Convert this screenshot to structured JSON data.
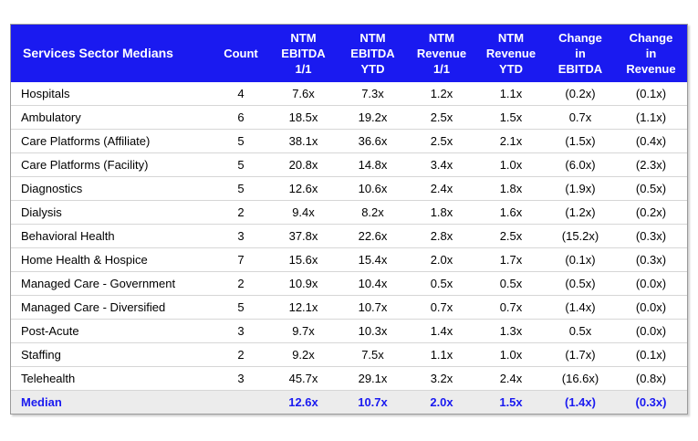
{
  "table": {
    "headers": [
      [
        "Services Sector Medians"
      ],
      [
        "Count"
      ],
      [
        "NTM",
        "EBITDA",
        "1/1"
      ],
      [
        "NTM",
        "EBITDA",
        "YTD"
      ],
      [
        "NTM",
        "Revenue",
        "1/1"
      ],
      [
        "NTM",
        "Revenue",
        "YTD"
      ],
      [
        "Change",
        "in",
        "EBITDA"
      ],
      [
        "Change",
        "in",
        "Revenue"
      ]
    ],
    "rows": [
      [
        "Hospitals",
        "4",
        "7.6x",
        "7.3x",
        "1.2x",
        "1.1x",
        "(0.2x)",
        "(0.1x)"
      ],
      [
        "Ambulatory",
        "6",
        "18.5x",
        "19.2x",
        "2.5x",
        "1.5x",
        "0.7x",
        "(1.1x)"
      ],
      [
        "Care Platforms (Affiliate)",
        "5",
        "38.1x",
        "36.6x",
        "2.5x",
        "2.1x",
        "(1.5x)",
        "(0.4x)"
      ],
      [
        "Care Platforms (Facility)",
        "5",
        "20.8x",
        "14.8x",
        "3.4x",
        "1.0x",
        "(6.0x)",
        "(2.3x)"
      ],
      [
        "Diagnostics",
        "5",
        "12.6x",
        "10.6x",
        "2.4x",
        "1.8x",
        "(1.9x)",
        "(0.5x)"
      ],
      [
        "Dialysis",
        "2",
        "9.4x",
        "8.2x",
        "1.8x",
        "1.6x",
        "(1.2x)",
        "(0.2x)"
      ],
      [
        "Behavioral Health",
        "3",
        "37.8x",
        "22.6x",
        "2.8x",
        "2.5x",
        "(15.2x)",
        "(0.3x)"
      ],
      [
        "Home Health & Hospice",
        "7",
        "15.6x",
        "15.4x",
        "2.0x",
        "1.7x",
        "(0.1x)",
        "(0.3x)"
      ],
      [
        "Managed Care - Government",
        "2",
        "10.9x",
        "10.4x",
        "0.5x",
        "0.5x",
        "(0.5x)",
        "(0.0x)"
      ],
      [
        "Managed Care - Diversified",
        "5",
        "12.1x",
        "10.7x",
        "0.7x",
        "0.7x",
        "(1.4x)",
        "(0.0x)"
      ],
      [
        "Post-Acute",
        "3",
        "9.7x",
        "10.3x",
        "1.4x",
        "1.3x",
        "0.5x",
        "(0.0x)"
      ],
      [
        "Staffing",
        "2",
        "9.2x",
        "7.5x",
        "1.1x",
        "1.0x",
        "(1.7x)",
        "(0.1x)"
      ],
      [
        "Telehealth",
        "3",
        "45.7x",
        "29.1x",
        "3.2x",
        "2.4x",
        "(16.6x)",
        "(0.8x)"
      ]
    ],
    "median": [
      "Median",
      "",
      "12.6x",
      "10.7x",
      "2.0x",
      "1.5x",
      "(1.4x)",
      "(0.3x)"
    ]
  },
  "colors": {
    "header_bg": "#1a1af0",
    "header_text": "#ffffff",
    "median_text": "#1a1af0",
    "median_bg": "#ececec"
  }
}
